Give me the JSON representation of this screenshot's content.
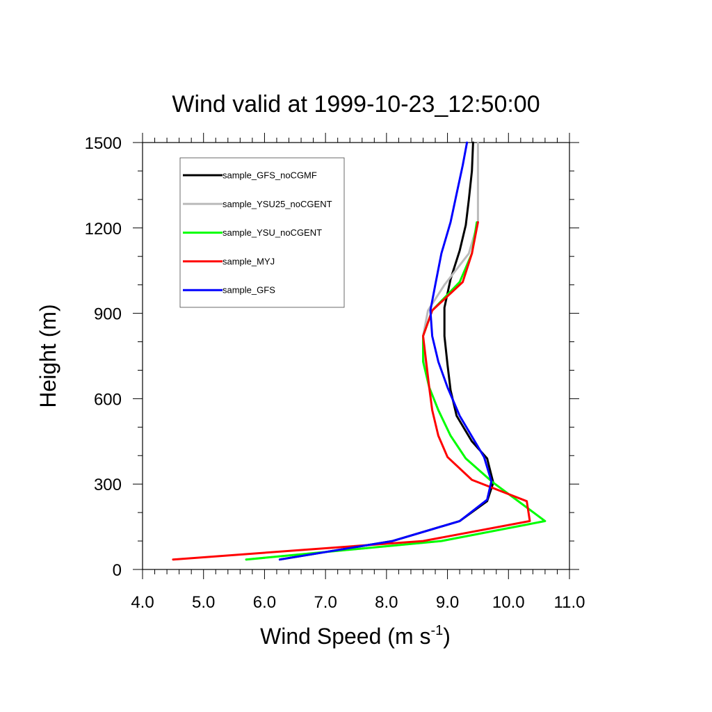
{
  "chart_data": {
    "type": "line",
    "title": "Wind valid at 1999-10-23_12:50:00",
    "xlabel": "Wind Speed (m s",
    "xlabel_superscript": "-1",
    "xlabel_suffix": ")",
    "ylabel": "Height (m)",
    "xlim": [
      4.0,
      11.0
    ],
    "ylim": [
      0,
      1500
    ],
    "x_ticks": [
      4.0,
      5.0,
      6.0,
      7.0,
      8.0,
      9.0,
      10.0,
      11.0
    ],
    "x_tick_labels": [
      "4.0",
      "5.0",
      "6.0",
      "7.0",
      "8.0",
      "9.0",
      "10.0",
      "11.0"
    ],
    "y_ticks": [
      0,
      300,
      600,
      900,
      1200,
      1500
    ],
    "y_tick_labels": [
      "0",
      "300",
      "600",
      "900",
      "1200",
      "1500"
    ],
    "grid": false,
    "legend_position": "top-left",
    "series": [
      {
        "name": "sample_GFS_noCGMF",
        "color": "#000000",
        "points": [
          [
            6.25,
            35
          ],
          [
            8.1,
            100
          ],
          [
            9.2,
            170
          ],
          [
            9.65,
            240
          ],
          [
            9.75,
            305
          ],
          [
            9.65,
            390
          ],
          [
            9.4,
            450
          ],
          [
            9.15,
            540
          ],
          [
            9.05,
            630
          ],
          [
            9.0,
            720
          ],
          [
            8.95,
            820
          ],
          [
            8.95,
            920
          ],
          [
            9.05,
            1020
          ],
          [
            9.2,
            1120
          ],
          [
            9.3,
            1210
          ],
          [
            9.35,
            1300
          ],
          [
            9.4,
            1400
          ],
          [
            9.42,
            1500
          ]
        ]
      },
      {
        "name": "sample_YSU25_noCGENT",
        "color": "#bbbbbb",
        "points": [
          [
            5.7,
            35
          ],
          [
            8.9,
            100
          ],
          [
            10.6,
            170
          ],
          [
            9.75,
            305
          ],
          [
            9.3,
            390
          ],
          [
            9.05,
            470
          ],
          [
            8.85,
            560
          ],
          [
            8.7,
            640
          ],
          [
            8.62,
            730
          ],
          [
            8.6,
            820
          ],
          [
            8.68,
            910
          ],
          [
            8.95,
            1000
          ],
          [
            9.35,
            1110
          ],
          [
            9.5,
            1220
          ],
          [
            9.5,
            1300
          ],
          [
            9.5,
            1400
          ],
          [
            9.5,
            1500
          ]
        ]
      },
      {
        "name": "sample_YSU_noCGENT",
        "color": "#00ff00",
        "points": [
          [
            5.7,
            35
          ],
          [
            8.9,
            100
          ],
          [
            10.6,
            170
          ],
          [
            9.75,
            305
          ],
          [
            9.3,
            390
          ],
          [
            9.05,
            470
          ],
          [
            8.85,
            560
          ],
          [
            8.7,
            640
          ],
          [
            8.6,
            730
          ],
          [
            8.6,
            820
          ],
          [
            8.75,
            910
          ],
          [
            9.2,
            1010
          ],
          [
            9.4,
            1110
          ],
          [
            9.48,
            1220
          ]
        ]
      },
      {
        "name": "sample_MYJ",
        "color": "#ff0000",
        "points": [
          [
            4.5,
            35
          ],
          [
            8.6,
            100
          ],
          [
            10.35,
            170
          ],
          [
            10.3,
            240
          ],
          [
            9.4,
            315
          ],
          [
            9.0,
            395
          ],
          [
            8.85,
            470
          ],
          [
            8.75,
            560
          ],
          [
            8.7,
            640
          ],
          [
            8.65,
            730
          ],
          [
            8.6,
            820
          ],
          [
            8.75,
            910
          ],
          [
            9.1,
            980
          ],
          [
            9.25,
            1010
          ],
          [
            9.4,
            1110
          ],
          [
            9.5,
            1220
          ]
        ]
      },
      {
        "name": "sample_GFS",
        "color": "#0000ff",
        "points": [
          [
            6.25,
            35
          ],
          [
            8.1,
            100
          ],
          [
            9.2,
            170
          ],
          [
            9.65,
            245
          ],
          [
            9.72,
            310
          ],
          [
            9.6,
            395
          ],
          [
            9.2,
            540
          ],
          [
            9.0,
            640
          ],
          [
            8.85,
            730
          ],
          [
            8.75,
            820
          ],
          [
            8.72,
            910
          ],
          [
            8.8,
            1000
          ],
          [
            8.9,
            1110
          ],
          [
            9.05,
            1220
          ],
          [
            9.15,
            1320
          ],
          [
            9.25,
            1420
          ],
          [
            9.32,
            1500
          ]
        ]
      }
    ]
  }
}
